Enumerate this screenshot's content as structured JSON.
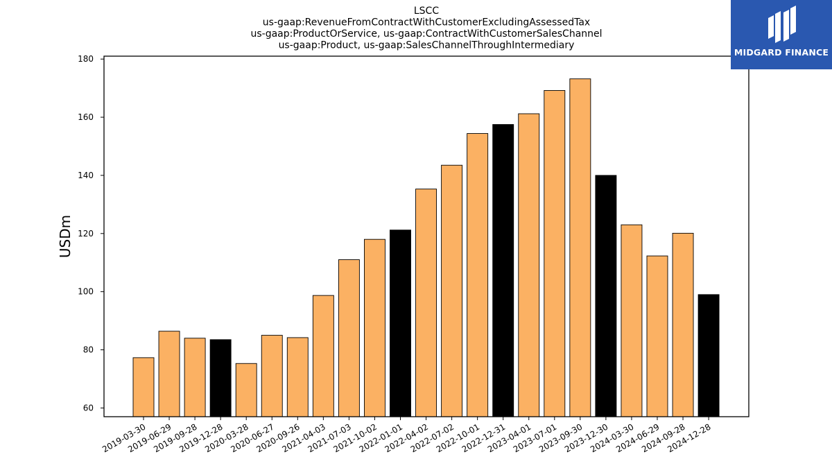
{
  "logo": {
    "text": "MIDGARD FINANCE"
  },
  "chart_data": {
    "type": "bar",
    "title_lines": [
      "LSCC",
      "us-gaap:RevenueFromContractWithCustomerExcludingAssessedTax",
      "us-gaap:ProductOrService, us-gaap:ContractWithCustomerSalesChannel",
      "us-gaap:Product, us-gaap:SalesChannelThroughIntermediary"
    ],
    "ylabel": "USDm",
    "ylim": [
      57,
      181
    ],
    "yticks": [
      60,
      80,
      100,
      120,
      140,
      160,
      180
    ],
    "categories": [
      "2019-03-30",
      "2019-06-29",
      "2019-09-28",
      "2019-12-28",
      "2020-03-28",
      "2020-06-27",
      "2020-09-26",
      "2021-04-03",
      "2021-07-03",
      "2021-10-02",
      "2022-01-01",
      "2022-04-02",
      "2022-07-02",
      "2022-10-01",
      "2022-12-31",
      "2023-04-01",
      "2023-07-01",
      "2023-09-30",
      "2023-12-30",
      "2024-03-30",
      "2024-06-29",
      "2024-09-28",
      "2024-12-28"
    ],
    "values": [
      77.3,
      86.4,
      84.0,
      83.5,
      75.3,
      85.0,
      84.2,
      98.7,
      111.0,
      118.0,
      121.2,
      135.3,
      143.5,
      154.4,
      157.5,
      161.2,
      169.2,
      173.2,
      140.0,
      123.0,
      112.3,
      120.1,
      99.0
    ],
    "bar_colors": [
      "#fbb163",
      "#fbb163",
      "#fbb163",
      "#000000",
      "#fbb163",
      "#fbb163",
      "#fbb163",
      "#fbb163",
      "#fbb163",
      "#fbb163",
      "#000000",
      "#fbb163",
      "#fbb163",
      "#fbb163",
      "#000000",
      "#fbb163",
      "#fbb163",
      "#fbb163",
      "#000000",
      "#fbb163",
      "#fbb163",
      "#fbb163",
      "#000000"
    ],
    "colors": {
      "primary": "#fbb163",
      "highlight": "#000000",
      "logo_bg": "#2a58b0"
    },
    "grid": false,
    "legend": "none"
  }
}
